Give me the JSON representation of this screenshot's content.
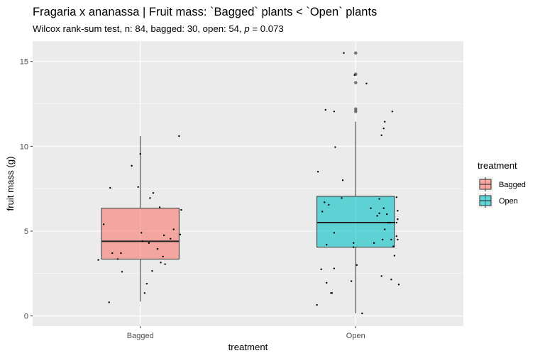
{
  "title": "Fragaria x ananassa | Fruit mass: `Bagged` plants < `Open` plants",
  "subtitle_main": "Wilcox rank-sum test, n: 84, bagged: 30, open: 54, ",
  "subtitle_p_symbol": "p",
  "subtitle_p_value": " = 0.073",
  "chart_data": {
    "type": "boxplot",
    "xlabel": "treatment",
    "ylabel": "fruit mass (g)",
    "categories": [
      "Bagged",
      "Open"
    ],
    "ylim": [
      -0.6,
      16.2
    ],
    "yticks": [
      0,
      5,
      10,
      15
    ],
    "legend": {
      "title": "treatment",
      "position": "right",
      "entries": [
        {
          "label": "Bagged",
          "color": "#F8766D"
        },
        {
          "label": "Open",
          "color": "#00BFC4"
        }
      ]
    },
    "boxes": [
      {
        "name": "Bagged",
        "color": "#F8766D",
        "min": 0.85,
        "q1": 3.35,
        "median": 4.4,
        "q3": 6.35,
        "max": 10.6,
        "outliers": []
      },
      {
        "name": "Open",
        "color": "#00BFC4",
        "min": 0.15,
        "q1": 4.05,
        "median": 5.5,
        "q3": 7.05,
        "max": 11.45,
        "outliers": [
          15.5,
          14.25,
          13.75,
          12.2,
          12.05
        ]
      }
    ],
    "points": [
      {
        "group": "Bagged",
        "jitter": [
          [
            -0.39,
            3.3
          ],
          [
            -0.34,
            5.4
          ],
          [
            -0.29,
            0.8
          ],
          [
            -0.28,
            7.55
          ],
          [
            -0.26,
            3.7
          ],
          [
            -0.21,
            3.35
          ],
          [
            -0.18,
            3.7
          ],
          [
            -0.17,
            2.6
          ],
          [
            -0.08,
            8.85
          ],
          [
            -0.02,
            7.6
          ],
          [
            0.0,
            9.55
          ],
          [
            0.02,
            4.4
          ],
          [
            0.04,
            1.35
          ],
          [
            0.06,
            1.9
          ],
          [
            0.08,
            4.3
          ],
          [
            0.09,
            6.95
          ],
          [
            0.12,
            7.25
          ],
          [
            0.16,
            3.95
          ],
          [
            0.18,
            6.4
          ],
          [
            0.19,
            3.15
          ],
          [
            0.21,
            3.5
          ],
          [
            0.22,
            4.75
          ],
          [
            0.23,
            3.05
          ],
          [
            0.28,
            4.55
          ],
          [
            0.31,
            5.1
          ],
          [
            0.36,
            10.6
          ],
          [
            0.37,
            4.8
          ],
          [
            0.38,
            6.25
          ],
          [
            0.11,
            2.65
          ],
          [
            0.01,
            4.9
          ]
        ]
      },
      {
        "group": "Open",
        "jitter": [
          [
            -0.36,
            0.65
          ],
          [
            -0.35,
            8.5
          ],
          [
            -0.32,
            2.75
          ],
          [
            -0.31,
            6.15
          ],
          [
            -0.29,
            6.7
          ],
          [
            -0.28,
            12.15
          ],
          [
            -0.27,
            4.2
          ],
          [
            -0.27,
            1.95
          ],
          [
            -0.25,
            6.55
          ],
          [
            -0.23,
            1.35
          ],
          [
            -0.22,
            1.35
          ],
          [
            -0.2,
            12.05
          ],
          [
            -0.2,
            4.9
          ],
          [
            -0.2,
            2.8
          ],
          [
            -0.19,
            9.95
          ],
          [
            -0.12,
            8.0
          ],
          [
            -0.13,
            6.95
          ],
          [
            -0.11,
            15.5
          ],
          [
            -0.04,
            2.05
          ],
          [
            -0.02,
            4.3
          ],
          [
            -0.02,
            4.05
          ],
          [
            -0.01,
            14.2
          ],
          [
            0.01,
            3.0
          ],
          [
            0.06,
            0.15
          ],
          [
            0.1,
            13.7
          ],
          [
            0.14,
            6.35
          ],
          [
            0.17,
            4.3
          ],
          [
            0.2,
            5.9
          ],
          [
            0.22,
            6.9
          ],
          [
            0.22,
            6.05
          ],
          [
            0.24,
            2.35
          ],
          [
            0.24,
            10.65
          ],
          [
            0.26,
            6.35
          ],
          [
            0.25,
            4.5
          ],
          [
            0.26,
            11.05
          ],
          [
            0.27,
            11.45
          ],
          [
            0.27,
            5.1
          ],
          [
            0.29,
            6.0
          ],
          [
            0.3,
            5.5
          ],
          [
            0.31,
            5.5
          ],
          [
            0.32,
            5.5
          ],
          [
            0.33,
            4.5
          ],
          [
            0.33,
            2.15
          ],
          [
            0.34,
            12.05
          ],
          [
            0.35,
            4.1
          ],
          [
            0.36,
            5.5
          ],
          [
            0.36,
            3.55
          ],
          [
            0.38,
            7.0
          ],
          [
            0.38,
            5.5
          ],
          [
            0.38,
            4.7
          ],
          [
            0.39,
            6.2
          ],
          [
            0.39,
            5.7
          ],
          [
            0.39,
            4.5
          ],
          [
            0.4,
            1.85
          ]
        ]
      }
    ]
  }
}
